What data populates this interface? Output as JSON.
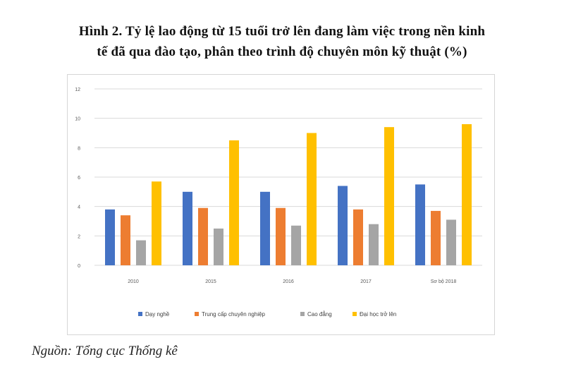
{
  "title_line1": "Hình 2. Tỷ lệ lao động từ 15 tuổi trở lên đang làm việc trong nền kinh",
  "title_line2": "tế đã qua đào tạo, phân theo trình độ chuyên môn kỹ thuật (%)",
  "source": "Nguồn: Tổng cục Thống kê",
  "chart_data": {
    "type": "bar",
    "title": "",
    "xlabel": "",
    "ylabel": "",
    "ylim": [
      0,
      12
    ],
    "yticks": [
      "0",
      "2",
      "4",
      "6",
      "8",
      "10",
      "12"
    ],
    "grid": true,
    "legend_position": "bottom",
    "categories": [
      "2010",
      "2015",
      "2016",
      "2017",
      "Sơ bộ 2018"
    ],
    "series": [
      {
        "name": "Dạy nghề",
        "color": "#4472c4",
        "values": [
          3.8,
          5.0,
          5.0,
          5.4,
          5.5
        ]
      },
      {
        "name": "Trung cấp chuyên nghiệp",
        "color": "#ed7d31",
        "values": [
          3.4,
          3.9,
          3.9,
          3.8,
          3.7
        ]
      },
      {
        "name": "Cao đẳng",
        "color": "#a5a5a5",
        "values": [
          1.7,
          2.5,
          2.7,
          2.8,
          3.1
        ]
      },
      {
        "name": "Đại học trở lên",
        "color": "#ffc000",
        "values": [
          5.7,
          8.5,
          9.0,
          9.4,
          9.6
        ]
      }
    ]
  }
}
